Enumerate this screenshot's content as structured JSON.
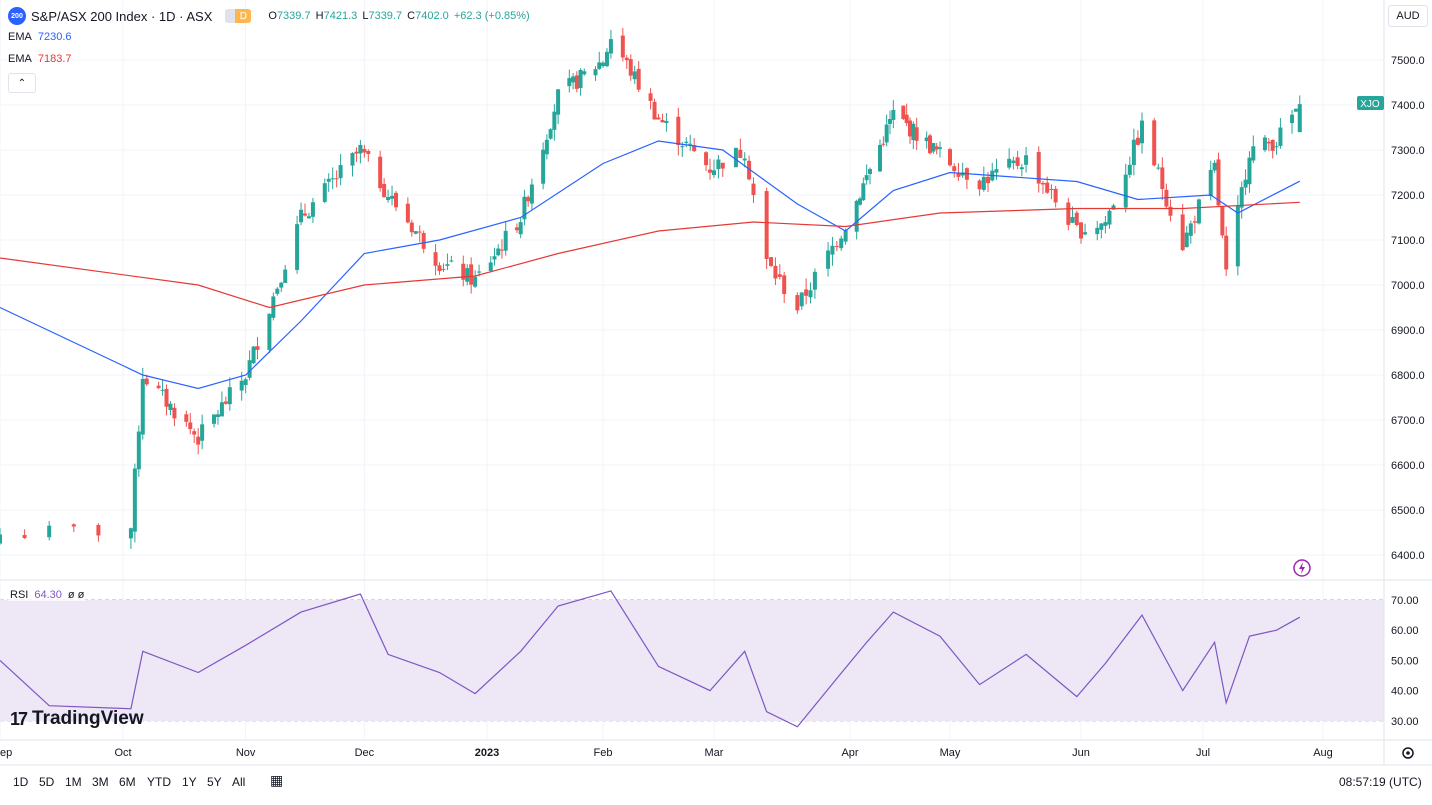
{
  "header": {
    "symbol_badge": "200",
    "title": "S&P/ASX 200 Index · 1D · ASX",
    "flag_label": "D",
    "ohlc": {
      "open_label": "O",
      "open": "7339.7",
      "high_label": "H",
      "high": "7421.3",
      "low_label": "L",
      "low": "7339.7",
      "close_label": "C",
      "close": "7402.0",
      "change": "+62.3 (+0.85%)"
    }
  },
  "indicators": {
    "ema1": {
      "label": "EMA",
      "value": "7230.6",
      "color": "#2962ff"
    },
    "ema2": {
      "label": "EMA",
      "value": "7183.7",
      "color": "#e53935"
    },
    "collapse_icon": "chevron-up-icon"
  },
  "currency": "AUD",
  "last_price_tag": {
    "text": "XJO",
    "color": "#26a69a"
  },
  "price_axis": [
    "7500.0",
    "7400.0",
    "7300.0",
    "7200.0",
    "7100.0",
    "7000.0",
    "6900.0",
    "6800.0",
    "6700.0",
    "6600.0",
    "6500.0",
    "6400.0"
  ],
  "rsi": {
    "label": "RSI",
    "value": "64.30",
    "extra": "ø ø",
    "axis": [
      "70.00",
      "60.00",
      "50.00",
      "40.00",
      "30.00"
    ],
    "color": "#7e57c2"
  },
  "time_axis": [
    "ep",
    "Oct",
    "Nov",
    "Dec",
    "2023",
    "Feb",
    "Mar",
    "Apr",
    "May",
    "Jun",
    "Jul",
    "Aug"
  ],
  "logo_text": "TradingView",
  "bottom_bar": {
    "timeframes": [
      "1D",
      "5D",
      "1M",
      "3M",
      "6M",
      "YTD",
      "1Y",
      "5Y",
      "All"
    ],
    "calendar_icon": "calendar-range-icon",
    "clock": "08:57:19 (UTC)",
    "settings_icon": "gear-icon"
  },
  "colors": {
    "up": "#26a69a",
    "down": "#ef5350",
    "rsi_band": "#ede7f6"
  },
  "chart_data": [
    {
      "type": "candlestick",
      "title": "S&P/ASX 200 Index · 1D · ASX",
      "ylim": [
        6350,
        7560
      ],
      "x_range": [
        "2022-09-26",
        "2023-07-26"
      ],
      "key_points": [
        {
          "date": "2022-09-28",
          "close": 6450
        },
        {
          "date": "2022-10-03",
          "close": 6460
        },
        {
          "date": "2022-10-06",
          "close": 6800
        },
        {
          "date": "2022-10-20",
          "close": 6660
        },
        {
          "date": "2022-11-01",
          "close": 6800
        },
        {
          "date": "2022-11-07",
          "close": 6950
        },
        {
          "date": "2022-11-15",
          "close": 7150
        },
        {
          "date": "2022-11-30",
          "close": 7300
        },
        {
          "date": "2022-12-07",
          "close": 7200
        },
        {
          "date": "2022-12-20",
          "close": 7050
        },
        {
          "date": "2022-12-29",
          "close": 7010
        },
        {
          "date": "2023-01-10",
          "close": 7150
        },
        {
          "date": "2023-01-20",
          "close": 7420
        },
        {
          "date": "2023-02-01",
          "close": 7500
        },
        {
          "date": "2023-02-03",
          "close": 7550
        },
        {
          "date": "2023-02-15",
          "close": 7370
        },
        {
          "date": "2023-02-28",
          "close": 7260
        },
        {
          "date": "2023-03-08",
          "close": 7300
        },
        {
          "date": "2023-03-13",
          "close": 7050
        },
        {
          "date": "2023-03-20",
          "close": 6950
        },
        {
          "date": "2023-03-29",
          "close": 7100
        },
        {
          "date": "2023-04-06",
          "close": 7240
        },
        {
          "date": "2023-04-14",
          "close": 7380
        },
        {
          "date": "2023-04-28",
          "close": 7290
        },
        {
          "date": "2023-05-08",
          "close": 7230
        },
        {
          "date": "2023-05-19",
          "close": 7280
        },
        {
          "date": "2023-05-31",
          "close": 7120
        },
        {
          "date": "2023-06-07",
          "close": 7140
        },
        {
          "date": "2023-06-16",
          "close": 7350
        },
        {
          "date": "2023-06-26",
          "close": 7090
        },
        {
          "date": "2023-07-04",
          "close": 7260
        },
        {
          "date": "2023-07-07",
          "close": 7020
        },
        {
          "date": "2023-07-13",
          "close": 7300
        },
        {
          "date": "2023-07-20",
          "close": 7320
        },
        {
          "date": "2023-07-26",
          "close": 7402
        }
      ],
      "last": {
        "open": 7339.7,
        "high": 7421.3,
        "low": 7339.7,
        "close": 7402.0
      }
    },
    {
      "type": "line",
      "series": [
        {
          "name": "EMA",
          "color": "#2962ff",
          "points": [
            [
              "2022-09-26",
              6950
            ],
            [
              "2022-10-06",
              6800
            ],
            [
              "2022-10-20",
              6770
            ],
            [
              "2022-11-01",
              6800
            ],
            [
              "2022-11-15",
              6920
            ],
            [
              "2022-12-01",
              7070
            ],
            [
              "2022-12-20",
              7100
            ],
            [
              "2023-01-10",
              7150
            ],
            [
              "2023-02-01",
              7270
            ],
            [
              "2023-02-15",
              7320
            ],
            [
              "2023-03-03",
              7300
            ],
            [
              "2023-03-20",
              7180
            ],
            [
              "2023-03-31",
              7120
            ],
            [
              "2023-04-14",
              7210
            ],
            [
              "2023-05-01",
              7250
            ],
            [
              "2023-05-31",
              7230
            ],
            [
              "2023-06-15",
              7190
            ],
            [
              "2023-07-03",
              7200
            ],
            [
              "2023-07-10",
              7160
            ],
            [
              "2023-07-26",
              7230.6
            ]
          ]
        },
        {
          "name": "EMA",
          "color": "#e53935",
          "points": [
            [
              "2022-09-26",
              7060
            ],
            [
              "2022-10-20",
              7000
            ],
            [
              "2022-11-07",
              6950
            ],
            [
              "2022-12-01",
              7000
            ],
            [
              "2022-12-29",
              7020
            ],
            [
              "2023-01-20",
              7070
            ],
            [
              "2023-02-15",
              7120
            ],
            [
              "2023-03-10",
              7140
            ],
            [
              "2023-03-31",
              7130
            ],
            [
              "2023-04-28",
              7160
            ],
            [
              "2023-05-31",
              7170
            ],
            [
              "2023-06-26",
              7170
            ],
            [
              "2023-07-26",
              7183.7
            ]
          ]
        }
      ]
    },
    {
      "type": "line",
      "title": "RSI",
      "ylim": [
        28,
        72
      ],
      "series": [
        {
          "name": "RSI",
          "color": "#7e57c2",
          "points": [
            [
              "2022-09-26",
              50
            ],
            [
              "2022-09-28",
              35
            ],
            [
              "2022-10-03",
              34
            ],
            [
              "2022-10-06",
              53
            ],
            [
              "2022-10-20",
              46
            ],
            [
              "2022-11-01",
              55
            ],
            [
              "2022-11-15",
              66
            ],
            [
              "2022-11-30",
              72
            ],
            [
              "2022-12-07",
              52
            ],
            [
              "2022-12-20",
              46
            ],
            [
              "2022-12-29",
              39
            ],
            [
              "2023-01-10",
              53
            ],
            [
              "2023-01-20",
              68
            ],
            [
              "2023-02-03",
              73
            ],
            [
              "2023-02-15",
              48
            ],
            [
              "2023-02-28",
              40
            ],
            [
              "2023-03-08",
              53
            ],
            [
              "2023-03-13",
              33
            ],
            [
              "2023-03-20",
              28
            ],
            [
              "2023-03-29",
              44
            ],
            [
              "2023-04-06",
              56
            ],
            [
              "2023-04-14",
              66
            ],
            [
              "2023-04-28",
              58
            ],
            [
              "2023-05-08",
              42
            ],
            [
              "2023-05-19",
              52
            ],
            [
              "2023-05-31",
              38
            ],
            [
              "2023-06-07",
              49
            ],
            [
              "2023-06-16",
              65
            ],
            [
              "2023-06-26",
              40
            ],
            [
              "2023-07-04",
              56
            ],
            [
              "2023-07-07",
              36
            ],
            [
              "2023-07-13",
              58
            ],
            [
              "2023-07-20",
              60
            ],
            [
              "2023-07-26",
              64.3
            ]
          ]
        }
      ]
    }
  ]
}
